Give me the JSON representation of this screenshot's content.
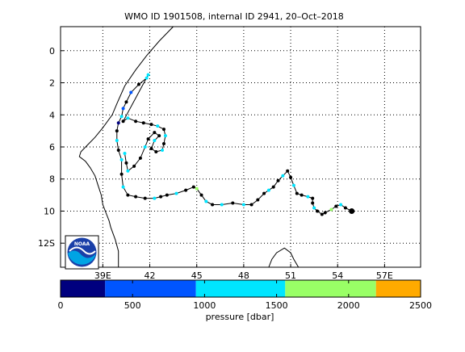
{
  "chart_data": {
    "type": "scatter",
    "title": "WMO ID 1901508, internal ID 2941, 20–Oct–2018",
    "xlim": [
      36.3,
      59.3
    ],
    "ylim": [
      13.5,
      -1.5
    ],
    "x_ticks": [
      39,
      42,
      45,
      48,
      51,
      54,
      57
    ],
    "x_tick_labels": [
      "39E",
      "42",
      "45",
      "48",
      "51",
      "54",
      "57E"
    ],
    "y_ticks": [
      0,
      2,
      4,
      6,
      8,
      10,
      12
    ],
    "y_tick_labels": [
      "0",
      "2",
      "4",
      "6",
      "8",
      "10",
      "12S"
    ],
    "grid": true,
    "colorbar": {
      "label": "pressure [dbar]",
      "ticks": [
        0,
        500,
        1000,
        1500,
        2000,
        2500
      ],
      "tick_labels": [
        "0",
        "500",
        "1000",
        "1500",
        "2000",
        "2500"
      ],
      "range": [
        0,
        2500
      ],
      "segments": [
        {
          "from": 0,
          "to": 310,
          "color": "#00007f"
        },
        {
          "from": 310,
          "to": 940,
          "color": "#0055ff"
        },
        {
          "from": 940,
          "to": 1560,
          "color": "#00e5ff"
        },
        {
          "from": 1560,
          "to": 2190,
          "color": "#99ff66"
        },
        {
          "from": 2190,
          "to": 2500,
          "color": "#ffaa00"
        }
      ]
    },
    "track": [
      [
        54.9,
        10.0
      ],
      [
        54.5,
        9.8
      ],
      [
        54.2,
        9.6
      ],
      [
        53.9,
        9.7
      ],
      [
        53.6,
        9.9
      ],
      [
        53.2,
        10.1
      ],
      [
        53.0,
        10.2
      ],
      [
        52.7,
        10.0
      ],
      [
        52.5,
        9.8
      ],
      [
        52.4,
        9.5
      ],
      [
        52.4,
        9.2
      ],
      [
        52.1,
        9.1
      ],
      [
        51.7,
        9.0
      ],
      [
        51.4,
        8.9
      ],
      [
        51.2,
        8.4
      ],
      [
        51.0,
        7.9
      ],
      [
        50.8,
        7.5
      ],
      [
        50.5,
        7.8
      ],
      [
        50.2,
        8.1
      ],
      [
        49.9,
        8.5
      ],
      [
        49.6,
        8.7
      ],
      [
        49.3,
        8.9
      ],
      [
        48.9,
        9.3
      ],
      [
        48.5,
        9.6
      ],
      [
        48.0,
        9.6
      ],
      [
        47.3,
        9.5
      ],
      [
        46.6,
        9.6
      ],
      [
        46.0,
        9.6
      ],
      [
        45.6,
        9.4
      ],
      [
        45.3,
        9.0
      ],
      [
        45.0,
        8.6
      ],
      [
        44.8,
        8.5
      ],
      [
        44.3,
        8.7
      ],
      [
        43.7,
        8.9
      ],
      [
        43.1,
        9.0
      ],
      [
        42.7,
        9.1
      ],
      [
        42.3,
        9.2
      ],
      [
        41.7,
        9.2
      ],
      [
        41.1,
        9.1
      ],
      [
        40.6,
        9.0
      ],
      [
        40.3,
        8.5
      ],
      [
        40.2,
        7.7
      ],
      [
        40.2,
        6.8
      ],
      [
        40.0,
        6.2
      ],
      [
        39.9,
        5.6
      ],
      [
        39.9,
        5.0
      ],
      [
        40.0,
        4.5
      ],
      [
        40.2,
        4.1
      ],
      [
        40.3,
        3.6
      ],
      [
        40.5,
        3.2
      ],
      [
        40.8,
        2.6
      ],
      [
        41.3,
        2.1
      ],
      [
        41.8,
        1.7
      ],
      [
        41.9,
        1.5
      ],
      [
        40.3,
        4.4
      ],
      [
        40.6,
        4.2
      ],
      [
        41.1,
        4.4
      ],
      [
        41.6,
        4.5
      ],
      [
        42.1,
        4.6
      ],
      [
        42.5,
        4.7
      ],
      [
        42.9,
        4.9
      ],
      [
        43.0,
        5.3
      ],
      [
        42.9,
        5.8
      ],
      [
        42.8,
        6.2
      ],
      [
        42.4,
        6.3
      ],
      [
        42.1,
        6.1
      ],
      [
        42.3,
        5.6
      ],
      [
        42.6,
        5.3
      ],
      [
        42.3,
        5.1
      ],
      [
        41.9,
        5.5
      ],
      [
        41.7,
        6.0
      ],
      [
        41.4,
        6.7
      ],
      [
        41.0,
        7.2
      ],
      [
        40.6,
        7.5
      ],
      [
        40.5,
        7.0
      ],
      [
        40.4,
        6.4
      ]
    ],
    "point_colors": [
      "#000000",
      "#000000",
      "#00e5ff",
      "#000000",
      "#99ff66",
      "#000000",
      "#000000",
      "#000000",
      "#00e5ff",
      "#000000",
      "#000000",
      "#00e5ff",
      "#000000",
      "#000000",
      "#00e5ff",
      "#000000",
      "#000000",
      "#00e5ff",
      "#000000",
      "#000000",
      "#00e5ff",
      "#000000",
      "#000000",
      "#000000",
      "#00e5ff",
      "#000000",
      "#00e5ff",
      "#000000",
      "#00e5ff",
      "#000000",
      "#99ff66",
      "#000000",
      "#000000",
      "#00e5ff",
      "#000000",
      "#000000",
      "#00e5ff",
      "#000000",
      "#000000",
      "#000000",
      "#00e5ff",
      "#000000",
      "#00e5ff",
      "#000000",
      "#00e5ff",
      "#000000",
      "#00007f",
      "#00e5ff",
      "#0055ff",
      "#000000",
      "#0055ff",
      "#000000",
      "#00e5ff",
      "#00e5ff",
      "#000000",
      "#00e5ff",
      "#000000",
      "#000000",
      "#000000",
      "#00e5ff",
      "#000000",
      "#00e5ff",
      "#000000",
      "#00e5ff",
      "#000000",
      "#000000",
      "#00e5ff",
      "#000000",
      "#000000",
      "#000000",
      "#00e5ff",
      "#000000",
      "#000000",
      "#00e5ff",
      "#000000",
      "#00e5ff"
    ],
    "coastline": [
      [
        43.5,
        -1.5
      ],
      [
        42.6,
        -0.6
      ],
      [
        41.8,
        0.3
      ],
      [
        41.1,
        1.2
      ],
      [
        40.4,
        2.2
      ],
      [
        39.9,
        3.3
      ],
      [
        39.6,
        4.0
      ],
      [
        39.0,
        4.8
      ],
      [
        38.5,
        5.4
      ],
      [
        38.0,
        5.9
      ],
      [
        37.6,
        6.3
      ],
      [
        37.5,
        6.6
      ],
      [
        37.9,
        6.9
      ],
      [
        38.2,
        7.3
      ],
      [
        38.5,
        7.8
      ],
      [
        38.7,
        8.4
      ],
      [
        38.9,
        9.0
      ],
      [
        39.0,
        9.6
      ],
      [
        39.2,
        10.1
      ],
      [
        39.4,
        10.6
      ],
      [
        39.5,
        11.0
      ],
      [
        39.8,
        11.8
      ],
      [
        40.0,
        12.5
      ],
      [
        40.0,
        13.5
      ]
    ],
    "coastline_2": [
      [
        49.6,
        13.5
      ],
      [
        49.8,
        13.0
      ],
      [
        50.1,
        12.6
      ],
      [
        50.6,
        12.3
      ],
      [
        51.0,
        12.6
      ],
      [
        51.2,
        13.0
      ],
      [
        51.5,
        13.5
      ]
    ]
  },
  "logo": {
    "text": "NOAA"
  }
}
